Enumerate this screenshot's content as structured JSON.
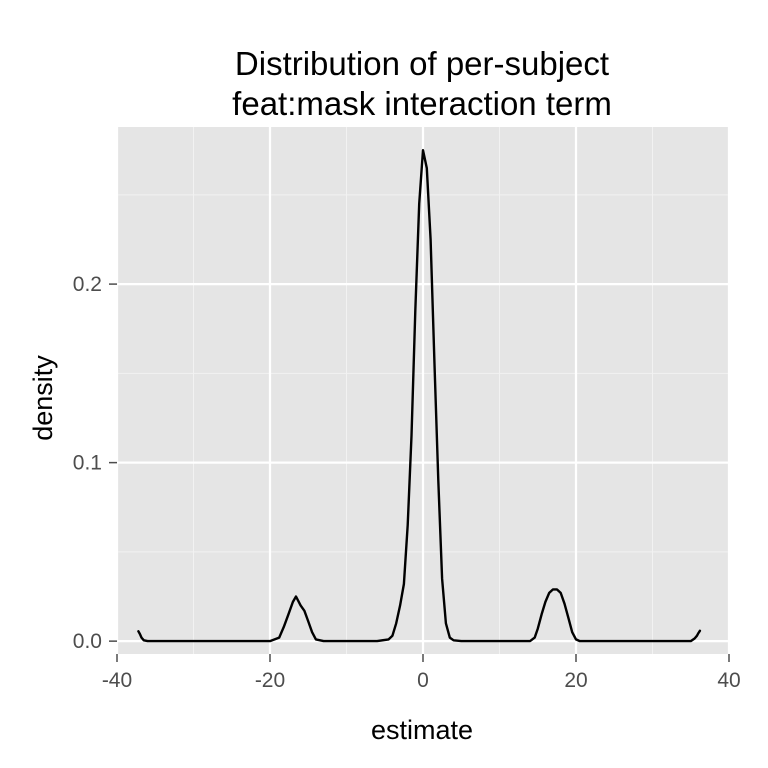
{
  "chart_data": {
    "type": "line",
    "title_lines": [
      "Distribution of per-subject",
      "feat:mask interaction term"
    ],
    "xlabel": "estimate",
    "ylabel": "density",
    "xlim": [
      -40,
      40
    ],
    "ylim": [
      -0.0072,
      0.288
    ],
    "x_ticks": [
      -40,
      -20,
      0,
      20,
      40
    ],
    "x_tick_labels": [
      "-40",
      "-20",
      "0",
      "20",
      "40"
    ],
    "x_minor_gridlines": [
      -30,
      -10,
      10,
      30
    ],
    "y_ticks": [
      0.0,
      0.1,
      0.2
    ],
    "y_tick_labels": [
      "0.0",
      "0.1",
      "0.2"
    ],
    "y_minor_gridlines": [
      0.05,
      0.15,
      0.25
    ],
    "grid": true,
    "background_color": "#e5e5e5",
    "line_color": "#000000",
    "series": [
      {
        "x": [
          -37.2,
          -37.0,
          -36.8,
          -36.5,
          -36.0,
          -30.0,
          -20.0,
          -18.8,
          -18.2,
          -17.6,
          -17.0,
          -16.6,
          -16.0,
          -15.5,
          -15.0,
          -14.5,
          -14.0,
          -13.0,
          -10.0,
          -6.0,
          -4.5,
          -4.0,
          -3.5,
          -3.0,
          -2.5,
          -2.0,
          -1.5,
          -1.0,
          -0.5,
          0.0,
          0.5,
          1.0,
          1.5,
          2.0,
          2.5,
          3.0,
          3.5,
          4.0,
          5.0,
          10.0,
          14.0,
          14.6,
          15.0,
          15.5,
          16.0,
          16.5,
          17.0,
          17.5,
          18.0,
          18.5,
          19.0,
          19.5,
          20.0,
          20.5,
          21.0,
          25.0,
          30.0,
          35.0,
          35.5,
          35.8,
          36.0,
          36.2
        ],
        "y": [
          0.0055,
          0.004,
          0.002,
          0.0005,
          0.0,
          0.0,
          0.0,
          0.002,
          0.008,
          0.015,
          0.022,
          0.025,
          0.02,
          0.017,
          0.011,
          0.005,
          0.001,
          0.0,
          0.0,
          0.0,
          0.001,
          0.003,
          0.01,
          0.02,
          0.032,
          0.065,
          0.115,
          0.185,
          0.245,
          0.275,
          0.265,
          0.225,
          0.155,
          0.09,
          0.035,
          0.01,
          0.002,
          0.0005,
          0.0,
          0.0,
          0.0,
          0.002,
          0.007,
          0.015,
          0.022,
          0.027,
          0.029,
          0.029,
          0.027,
          0.021,
          0.013,
          0.005,
          0.001,
          0.0,
          0.0,
          0.0,
          0.0,
          0.0,
          0.0015,
          0.003,
          0.0045,
          0.0058
        ]
      }
    ]
  }
}
